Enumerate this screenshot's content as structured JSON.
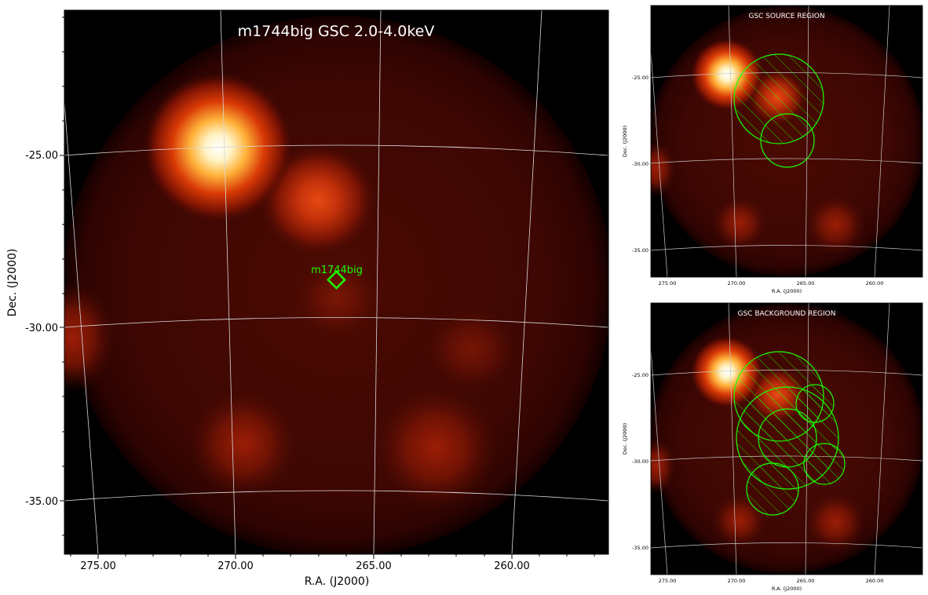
{
  "colors": {
    "background": "#000000",
    "halo": "#3a0602",
    "bright_source": "#fff6e0",
    "region": "#1aff00",
    "grid": "#d8d8d8",
    "title_text": "#ffffff",
    "axis_text": "#000000"
  },
  "main": {
    "title": "m1744big GSC 2.0-4.0keV",
    "xlabel": "R.A. (J2000)",
    "ylabel": "Dec. (J2000)",
    "x_ticks": [
      "275.00",
      "270.00",
      "265.00",
      "260.00"
    ],
    "y_ticks": [
      "-25.00",
      "-30.00",
      "-35.00"
    ],
    "target_label": "m1744big",
    "target_marker_icon": "diamond-marker-icon"
  },
  "source_panel": {
    "title": "GSC SOURCE REGION",
    "xlabel": "R.A. (J2000)",
    "ylabel": "Dec. (J2000)",
    "x_ticks": [
      "275.00",
      "270.00",
      "265.00",
      "260.00"
    ],
    "y_ticks": [
      "-25.00",
      "-30.00",
      "-35.00"
    ]
  },
  "background_panel": {
    "title": "GSC BACKGROUND REGION",
    "xlabel": "R.A. (J2000)",
    "ylabel": "Dec. (J2000)",
    "x_ticks": [
      "275.00",
      "270.00",
      "265.00",
      "260.00"
    ],
    "y_ticks": [
      "-25.00",
      "-30.00",
      "-35.00"
    ]
  }
}
